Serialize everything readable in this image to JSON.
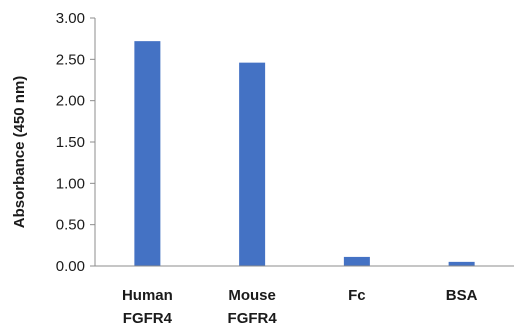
{
  "chart_data": {
    "type": "bar",
    "title": "",
    "xlabel": "",
    "ylabel": "Absorbance (450 nm)",
    "categories": [
      [
        "Human",
        "FGFR4"
      ],
      [
        "Mouse",
        "FGFR4"
      ],
      [
        "Fc"
      ],
      [
        "BSA"
      ]
    ],
    "values": [
      2.72,
      2.46,
      0.11,
      0.05
    ],
    "ylim": [
      0,
      3.0
    ],
    "yticks": [
      0,
      0.5,
      1.0,
      1.5,
      2.0,
      2.5,
      3.0
    ],
    "ytick_labels": [
      "0.00",
      "0.50",
      "1.00",
      "1.50",
      "2.00",
      "2.50",
      "3.00"
    ],
    "grid": false,
    "legend": "none",
    "colors": {
      "bar": "#4472C4",
      "axis": "#8c8c8c",
      "text": "#1a1a1a"
    }
  }
}
